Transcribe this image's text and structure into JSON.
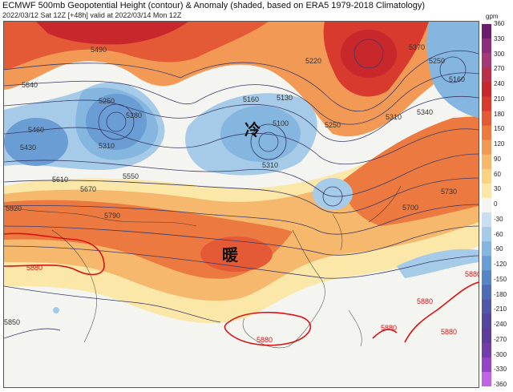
{
  "header": {
    "title": "ECMWF 500mb Geopotential Height (contour) & Anomaly (shaded, based on ERA5 1979-2018 Climatology)",
    "subtitle": "2022/03/12 Sat 12Z [+48h] valid at 2022/03/14 Mon 12Z"
  },
  "colorbar": {
    "unit": "gpm",
    "ticks": [
      "360",
      "330",
      "300",
      "270",
      "240",
      "210",
      "180",
      "150",
      "120",
      "90",
      "60",
      "30",
      "0",
      "-30",
      "-60",
      "-90",
      "-120",
      "-150",
      "-180",
      "-210",
      "-240",
      "-270",
      "-300",
      "-330",
      "-360"
    ],
    "colors": [
      "#6a1f6a",
      "#8b2f7a",
      "#a23a7a",
      "#b8304a",
      "#c8282c",
      "#d83a2e",
      "#e55a36",
      "#ec7a40",
      "#f29a55",
      "#f6b86c",
      "#f9d284",
      "#fbe7a8",
      "#f4f4f0",
      "#c9dff0",
      "#a5cbe8",
      "#84b6df",
      "#6a9dd3",
      "#5784c6",
      "#4f6cb8",
      "#4f57aa",
      "#5347a0",
      "#5d3c9c",
      "#743ca8",
      "#9245c4",
      "#c064e6"
    ]
  },
  "map": {
    "contour_labels": [
      "5490",
      "5640",
      "5250",
      "5280",
      "5160",
      "5130",
      "5100",
      "5220",
      "5370",
      "5250",
      "5160",
      "5460",
      "5310",
      "5310",
      "5430",
      "5310",
      "5250",
      "5610",
      "5550",
      "5670",
      "5340",
      "5820",
      "5790",
      "5700",
      "5730",
      "5880",
      "5880",
      "5880",
      "5880",
      "5880",
      "5880",
      "5850"
    ],
    "cold_label": "冷",
    "warm_label": "暖"
  }
}
